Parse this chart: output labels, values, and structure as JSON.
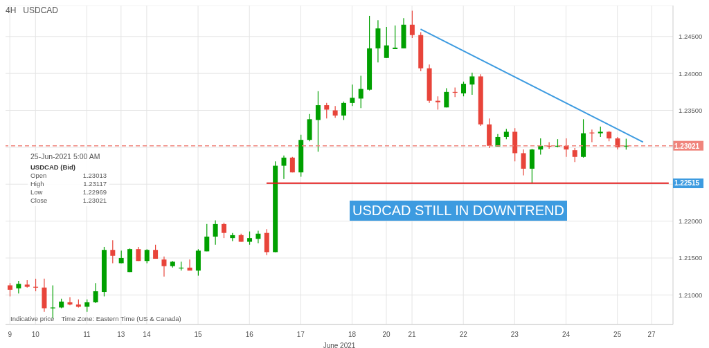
{
  "chart_data": {
    "type": "candlestick",
    "title": "USDCAD",
    "subtitle": "4H",
    "xlabel": "June 2021",
    "categories": [
      "9",
      null,
      null,
      "10",
      null,
      null,
      null,
      null,
      null,
      "11",
      null,
      null,
      null,
      "13",
      null,
      null,
      "14",
      null,
      null,
      null,
      null,
      null,
      "15",
      null,
      null,
      null,
      null,
      null,
      "16",
      null,
      null,
      null,
      null,
      null,
      "17",
      null,
      null,
      null,
      null,
      null,
      "18",
      null,
      null,
      null,
      "20",
      null,
      null,
      "21",
      null,
      null,
      null,
      null,
      null,
      "22",
      null,
      null,
      null,
      null,
      null,
      "23",
      null,
      null,
      null,
      null,
      null,
      "24",
      null,
      null,
      null,
      null,
      null,
      "25",
      null,
      null,
      null,
      "27",
      null,
      null
    ],
    "ohlc": [
      [
        1.2113,
        1.2116,
        1.2098,
        1.2107
      ],
      [
        1.2109,
        1.2119,
        1.2102,
        1.2115
      ],
      [
        1.2114,
        1.212,
        1.211,
        1.2111
      ],
      [
        1.2111,
        1.2122,
        1.2105,
        1.211
      ],
      [
        1.211,
        1.2122,
        1.2077,
        1.2082
      ],
      [
        1.2082,
        1.2113,
        1.2068,
        1.2083
      ],
      [
        1.2083,
        1.2095,
        1.2082,
        1.2091
      ],
      [
        1.209,
        1.2097,
        1.2086,
        1.2087
      ],
      [
        1.2087,
        1.2094,
        1.2083,
        1.2084
      ],
      [
        1.2084,
        1.2094,
        1.2077,
        1.209
      ],
      [
        1.209,
        1.2116,
        1.2089,
        1.2105
      ],
      [
        1.2104,
        1.2165,
        1.2098,
        1.2161
      ],
      [
        1.2161,
        1.2174,
        1.2143,
        1.2153
      ],
      [
        1.2143,
        1.216,
        1.2143,
        1.215
      ],
      [
        1.2131,
        1.2163,
        1.2131,
        1.2162
      ],
      [
        1.2162,
        1.2165,
        1.2146,
        1.2146
      ],
      [
        1.2146,
        1.2162,
        1.2143,
        1.2161
      ],
      [
        1.2161,
        1.2168,
        1.2149,
        1.2149
      ],
      [
        1.2148,
        1.2152,
        1.2125,
        1.2139
      ],
      [
        1.2139,
        1.2146,
        1.2137,
        1.2145
      ],
      [
        1.2136,
        1.2145,
        1.2133,
        1.2137
      ],
      [
        1.2137,
        1.2148,
        1.2133,
        1.2133
      ],
      [
        1.2133,
        1.2162,
        1.2126,
        1.216
      ],
      [
        1.2159,
        1.2196,
        1.2159,
        1.2179
      ],
      [
        1.2179,
        1.2201,
        1.2168,
        1.2196
      ],
      [
        1.2196,
        1.2198,
        1.2177,
        1.2184
      ],
      [
        1.2177,
        1.2184,
        1.2173,
        1.2181
      ],
      [
        1.2181,
        1.2183,
        1.2172,
        1.2172
      ],
      [
        1.2172,
        1.2186,
        1.2168,
        1.2177
      ],
      [
        1.2176,
        1.2187,
        1.217,
        1.2183
      ],
      [
        1.2184,
        1.2189,
        1.2154,
        1.2158
      ],
      [
        1.2158,
        1.2281,
        1.2158,
        1.2275
      ],
      [
        1.2275,
        1.2289,
        1.2257,
        1.2286
      ],
      [
        1.2286,
        1.2287,
        1.2266,
        1.2266
      ],
      [
        1.2266,
        1.2317,
        1.226,
        1.231
      ],
      [
        1.231,
        1.2345,
        1.2308,
        1.2338
      ],
      [
        1.2337,
        1.2376,
        1.2294,
        1.2357
      ],
      [
        1.2357,
        1.236,
        1.2339,
        1.2351
      ],
      [
        1.235,
        1.2356,
        1.234,
        1.2343
      ],
      [
        1.2343,
        1.2362,
        1.2337,
        1.236
      ],
      [
        1.236,
        1.2385,
        1.2356,
        1.2367
      ],
      [
        1.2366,
        1.2397,
        1.2353,
        1.2379
      ],
      [
        1.2378,
        1.2478,
        1.2377,
        1.2434
      ],
      [
        1.2434,
        1.2472,
        1.2415,
        1.2461
      ],
      [
        1.2421,
        1.2463,
        1.2421,
        1.2438
      ],
      [
        1.2433,
        1.2465,
        1.2433,
        1.2435
      ],
      [
        1.2434,
        1.2475,
        1.2434,
        1.2466
      ],
      [
        1.2466,
        1.2485,
        1.2448,
        1.2452
      ],
      [
        1.2452,
        1.2456,
        1.2403,
        1.2407
      ],
      [
        1.2407,
        1.2412,
        1.236,
        1.2363
      ],
      [
        1.2363,
        1.2369,
        1.2351,
        1.2361
      ],
      [
        1.2354,
        1.238,
        1.2354,
        1.2375
      ],
      [
        1.2375,
        1.2381,
        1.2368,
        1.2374
      ],
      [
        1.2373,
        1.2389,
        1.2369,
        1.2386
      ],
      [
        1.2385,
        1.2401,
        1.2371,
        1.2396
      ],
      [
        1.2396,
        1.2399,
        1.2329,
        1.2331
      ],
      [
        1.2331,
        1.2339,
        1.2299,
        1.2302
      ],
      [
        1.2301,
        1.2318,
        1.2301,
        1.2314
      ],
      [
        1.2314,
        1.2325,
        1.2311,
        1.2321
      ],
      [
        1.2321,
        1.2326,
        1.2281,
        1.2292
      ],
      [
        1.2292,
        1.2297,
        1.2262,
        1.2271
      ],
      [
        1.2271,
        1.2298,
        1.2251,
        1.2297
      ],
      [
        1.2297,
        1.2312,
        1.229,
        1.2302
      ],
      [
        1.2302,
        1.2307,
        1.2298,
        1.2301
      ],
      [
        1.2301,
        1.2311,
        1.23,
        1.2302
      ],
      [
        1.2302,
        1.2312,
        1.2287,
        1.2297
      ],
      [
        1.2296,
        1.2299,
        1.228,
        1.2287
      ],
      [
        1.2287,
        1.2338,
        1.2286,
        1.2319
      ],
      [
        1.232,
        1.2324,
        1.2307,
        1.2319
      ],
      [
        1.2319,
        1.2328,
        1.2314,
        1.2321
      ],
      [
        1.2321,
        1.2322,
        1.2308,
        1.2312
      ],
      [
        1.2312,
        1.2314,
        1.2297,
        1.23
      ],
      [
        1.23013,
        1.23117,
        1.22969,
        1.23021
      ],
      null,
      null,
      null,
      null,
      null
    ],
    "colors": [
      "#e8443a",
      "#00a000",
      "#e8443a",
      "#e8443a",
      "#e8443a",
      "#00a000",
      "#00a000",
      "#e8443a",
      "#e8443a",
      "#00a000",
      "#00a000",
      "#00a000",
      "#e8443a",
      "#00a000",
      "#00a000",
      "#e8443a",
      "#00a000",
      "#e8443a",
      "#e8443a",
      "#00a000",
      "#00a000",
      "#e8443a",
      "#00a000",
      "#00a000",
      "#00a000",
      "#e8443a",
      "#00a000",
      "#e8443a",
      "#00a000",
      "#00a000",
      "#e8443a",
      "#00a000",
      "#00a000",
      "#e8443a",
      "#00a000",
      "#00a000",
      "#00a000",
      "#e8443a",
      "#e8443a",
      "#00a000",
      "#00a000",
      "#00a000",
      "#00a000",
      "#00a000",
      "#00a000",
      "#00a000",
      "#00a000",
      "#e8443a",
      "#e8443a",
      "#e8443a",
      "#e8443a",
      "#00a000",
      "#e8443a",
      "#00a000",
      "#00a000",
      "#e8443a",
      "#e8443a",
      "#00a000",
      "#00a000",
      "#e8443a",
      "#e8443a",
      "#00a000",
      "#00a000",
      "#e8443a",
      "#00a000",
      "#e8443a",
      "#e8443a",
      "#00a000",
      "#e8443a",
      "#00a000",
      "#e8443a",
      "#e8443a",
      "#00a000",
      null,
      null,
      null,
      null,
      null
    ],
    "series": [
      {
        "type": "line",
        "values": [
          null,
          null,
          null,
          null,
          null,
          null,
          null,
          null,
          null,
          null,
          null,
          null,
          null,
          null,
          null,
          null,
          null,
          null,
          null,
          null,
          null,
          null,
          null,
          null,
          null,
          null,
          null,
          null,
          null,
          null,
          null,
          null,
          null,
          null,
          null,
          null,
          null,
          null,
          null,
          null,
          null,
          null,
          null,
          null,
          null,
          null,
          null,
          null,
          1.246,
          null,
          null,
          null,
          null,
          null,
          null,
          null,
          null,
          null,
          null,
          null,
          null,
          null,
          null,
          null,
          null,
          null,
          null,
          null,
          null,
          null,
          null,
          null,
          null,
          null,
          1.2307,
          null,
          null,
          null
        ],
        "color": "#3d9be0"
      },
      {
        "type": "line",
        "values": [
          null,
          null,
          null,
          null,
          null,
          null,
          null,
          null,
          null,
          null,
          null,
          null,
          null,
          null,
          null,
          null,
          null,
          null,
          null,
          null,
          null,
          null,
          null,
          null,
          null,
          null,
          null,
          null,
          null,
          null,
          1.22515,
          null,
          null,
          null,
          null,
          null,
          null,
          null,
          null,
          null,
          null,
          null,
          null,
          null,
          null,
          null,
          null,
          null,
          null,
          null,
          null,
          null,
          null,
          null,
          null,
          null,
          null,
          null,
          null,
          null,
          null,
          null,
          null,
          null,
          null,
          null,
          null,
          null,
          null,
          null,
          null,
          null,
          null,
          null,
          null,
          null,
          null,
          1.22515
        ],
        "color": "#e21b1b"
      }
    ],
    "ref_lines": [
      {
        "axis": "y",
        "value": 1.23021,
        "label": "1.23021",
        "color": "#f0847c",
        "line_style": "dashed"
      }
    ],
    "annotations": [
      "USDCAD STILL IN DOWNTREND",
      "25-Jun-2021 5:00 AM",
      "USDCAD (Bid)",
      "Open",
      "1.23013",
      "High",
      "1.23117",
      "Low",
      "1.22969",
      "Close",
      "1.23021",
      "Indicative price",
      "Time Zone: Eastern Time (US & Canada)",
      {
        "text": "1.22515",
        "y": 1.22515
      }
    ],
    "ylim": [
      1.206,
      1.2492
    ],
    "yticks": [
      {
        "value": 1.21,
        "label": "1.21000"
      },
      {
        "value": 1.215,
        "label": "1.21500"
      },
      {
        "value": 1.22,
        "label": "1.22000"
      },
      {
        "value": 1.225,
        "label": null
      },
      {
        "value": 1.23,
        "label": null
      },
      {
        "value": 1.235,
        "label": "1.23500"
      },
      {
        "value": 1.24,
        "label": "1.24000"
      },
      {
        "value": 1.245,
        "label": "1.24500"
      }
    ],
    "grid": true,
    "line_style": "solid"
  }
}
